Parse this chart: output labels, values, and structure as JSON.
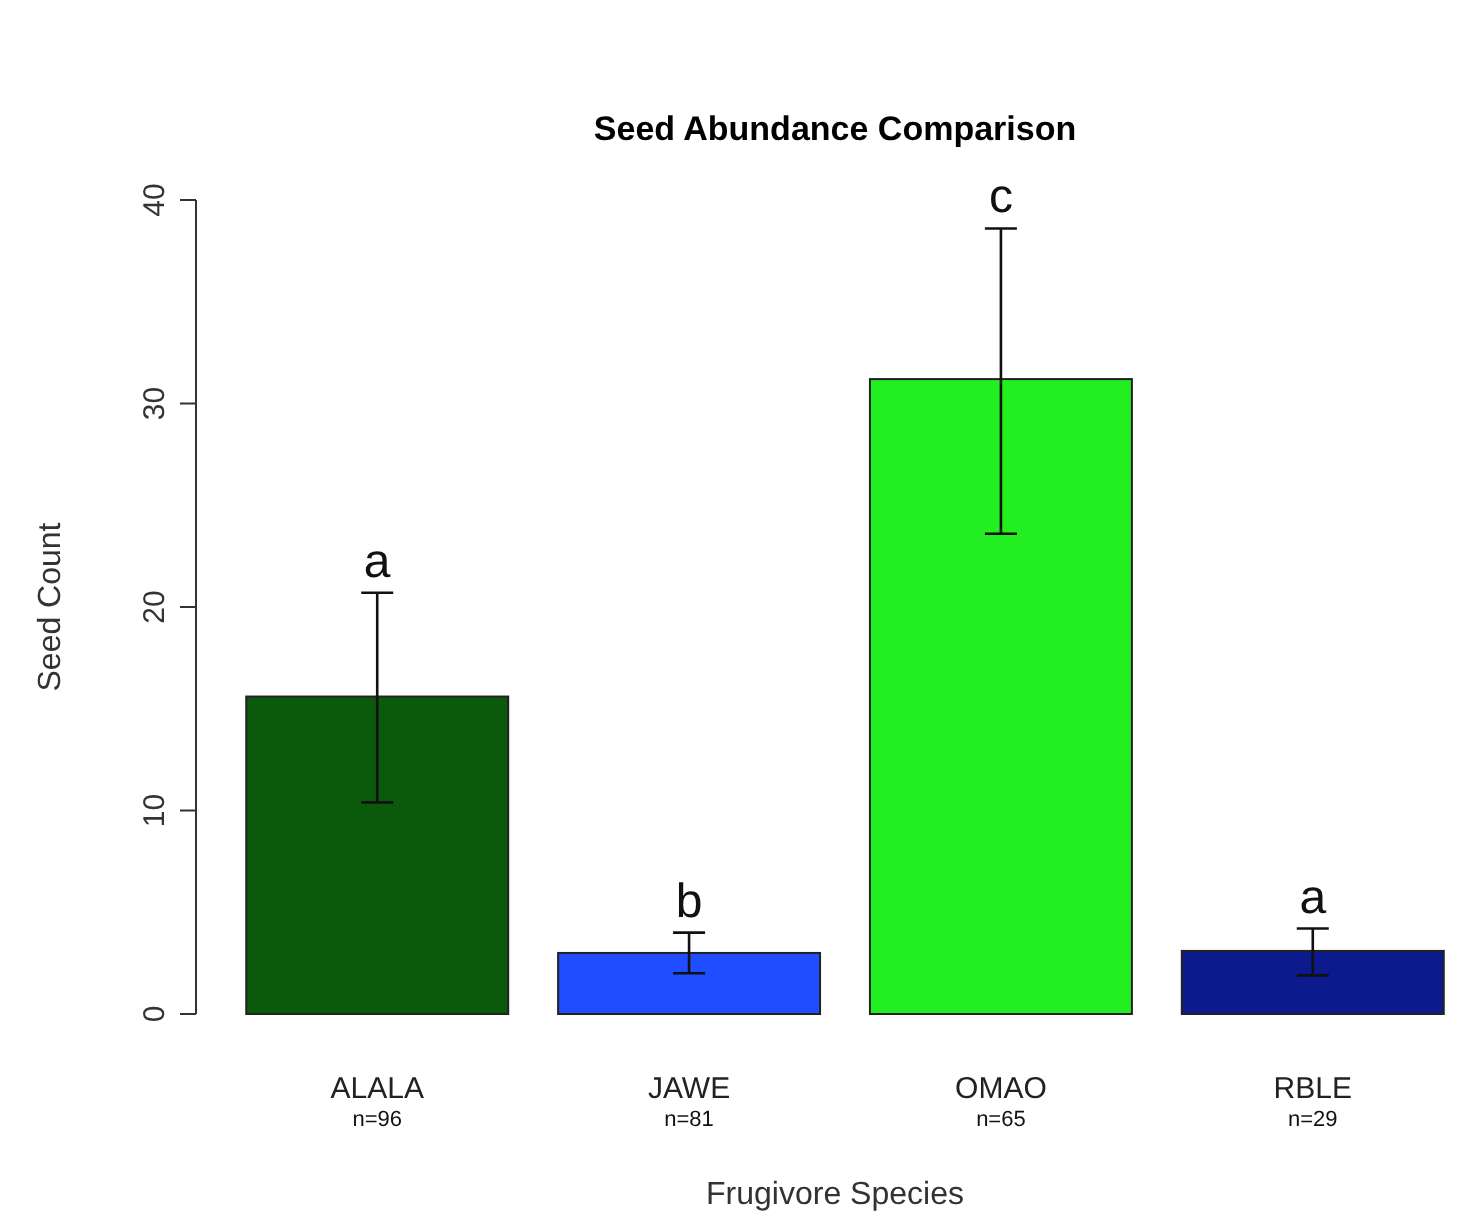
{
  "chart_data": {
    "type": "bar",
    "title": "Seed Abundance Comparison",
    "xlabel": "Frugivore Species",
    "ylabel": "Seed Count",
    "categories": [
      "ALALA",
      "JAWE",
      "OMAO",
      "RBLE"
    ],
    "values": [
      15.6,
      3.0,
      31.2,
      3.1
    ],
    "colors": [
      "#0b5a0b",
      "#1f4dff",
      "#22ee22",
      "#0b1a8c"
    ],
    "errors": [
      [
        10.4,
        20.7
      ],
      [
        2.0,
        4.0
      ],
      [
        23.6,
        38.6
      ],
      [
        1.9,
        4.2
      ]
    ],
    "ylim": [
      0,
      40
    ],
    "yticks": [
      0,
      10,
      20,
      30,
      40
    ],
    "grid": false,
    "annotations": [
      {
        "text": "a",
        "x": "ALALA",
        "y": 20.7
      },
      {
        "text": "b",
        "x": "JAWE",
        "y": 4.0
      },
      {
        "text": "c",
        "x": "OMAO",
        "y": 38.6
      },
      {
        "text": "a",
        "x": "RBLE",
        "y": 4.2
      },
      "n=96",
      "n=81",
      "n=65",
      "n=29"
    ]
  }
}
